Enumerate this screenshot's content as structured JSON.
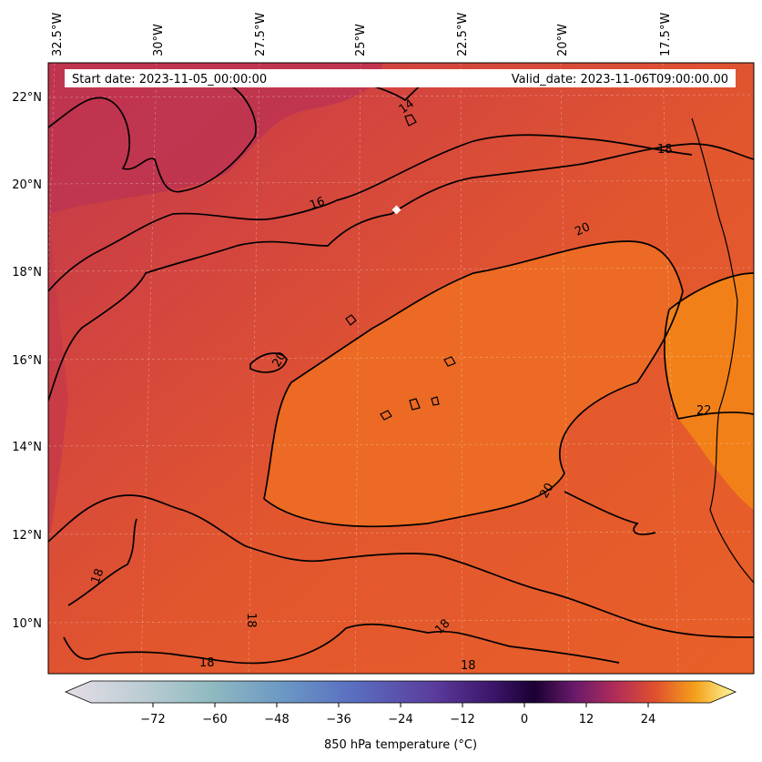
{
  "map": {
    "info_left": "Start date: 2023-11-05_00:00:00",
    "info_right": "Valid_date: 2023-11-06T09:00:00.00",
    "lon_labels": [
      "32.5°W",
      "30°W",
      "27.5°W",
      "25°W",
      "22.5°W",
      "20°W",
      "17.5°W"
    ],
    "lat_labels": [
      "22°N",
      "20°N",
      "18°N",
      "16°N",
      "14°N",
      "12°N",
      "10°N"
    ],
    "contour_labels": [
      "14",
      "18",
      "16",
      "20",
      "20",
      "22",
      "20",
      "18",
      "18",
      "18",
      "18",
      "18"
    ],
    "marker": "white-diamond"
  },
  "colorbar": {
    "label": "850 hPa temperature ($^\\circ$C)",
    "label_display": "850 hPa temperature (°C)",
    "ticks": [
      "−72",
      "−60",
      "−48",
      "−36",
      "−24",
      "−12",
      "0",
      "12",
      "24"
    ],
    "tick_values": [
      -72,
      -60,
      -48,
      -36,
      -24,
      -12,
      0,
      12,
      24
    ],
    "range": [
      -84,
      36
    ],
    "colors": {
      "cold_end": "#e6dde6",
      "teal": "#8fb9c0",
      "blue": "#5a7fc0",
      "purple": "#5a2c8c",
      "dark": "#1a0033",
      "red": "#c0304f",
      "orange": "#f07a1a",
      "yellow": "#fcfca0"
    }
  }
}
